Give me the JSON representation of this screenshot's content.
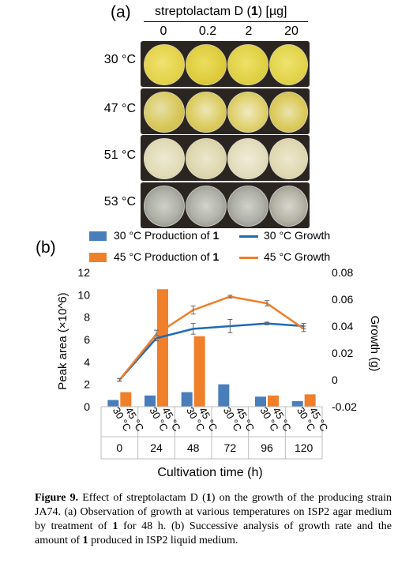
{
  "panel_a": {
    "letter": "(a)",
    "header_prefix": "streptolactam D (",
    "header_compound": "1",
    "header_suffix": ") [µg]",
    "doses": [
      "0",
      "0.2",
      "2",
      "20"
    ],
    "temperatures": [
      "30 °C",
      "47 °C",
      "51 °C",
      "53 °C"
    ]
  },
  "panel_b": {
    "letter": "(b)",
    "legend": [
      {
        "label": "30 °C Production of ",
        "bold": "1",
        "kind": "bar",
        "color": "#4a7ebb"
      },
      {
        "label": "30 °C Growth",
        "bold": "",
        "kind": "line",
        "color": "#1f6ab5"
      },
      {
        "label": "45 °C Production of ",
        "bold": "1",
        "kind": "bar",
        "color": "#f07f2a"
      },
      {
        "label": "45 °C Growth",
        "bold": "",
        "kind": "line",
        "color": "#f07f2a"
      }
    ]
  },
  "chart_data": {
    "type": "bar",
    "categories": [
      "0",
      "24",
      "48",
      "72",
      "96",
      "120"
    ],
    "subcategories": [
      "30 °C",
      "45 °C"
    ],
    "xlabel": "Cultivation time (h)",
    "ylabel": "Peak area (×10^6)",
    "y2label": "Growth (g)",
    "ylim": [
      0,
      12
    ],
    "yticks": [
      "0",
      "2",
      "4",
      "6",
      "8",
      "10",
      "12"
    ],
    "y2lim": [
      -0.02,
      0.08
    ],
    "y2ticks": [
      "-0.02",
      "0",
      "0.02",
      "0.04",
      "0.06",
      "0.08"
    ],
    "series": [
      {
        "name": "30 °C Production of 1",
        "type": "bar",
        "axis": "left",
        "color": "#4a7ebb",
        "values": [
          0.6,
          1.0,
          1.3,
          2.0,
          0.9,
          0.5
        ]
      },
      {
        "name": "45 °C Production of 1",
        "type": "bar",
        "axis": "left",
        "color": "#f07f2a",
        "values": [
          1.3,
          10.5,
          6.3,
          0.0,
          1.0,
          1.1
        ]
      },
      {
        "name": "30 °C Growth",
        "type": "line",
        "axis": "right",
        "color": "#1f6ab5",
        "values": [
          0.0,
          0.031,
          0.038,
          0.04,
          0.042,
          0.04
        ],
        "errors": [
          0.001,
          0.002,
          0.004,
          0.005,
          0.001,
          0.002
        ]
      },
      {
        "name": "45 °C Growth",
        "type": "line",
        "axis": "right",
        "color": "#f07f2a",
        "values": [
          0.0,
          0.034,
          0.052,
          0.062,
          0.057,
          0.038
        ],
        "errors": [
          0.001,
          0.003,
          0.003,
          0.001,
          0.002,
          0.002
        ]
      }
    ]
  },
  "caption": {
    "label": "Figure 9.",
    "p1": " Effect of streptolactam D (",
    "b1": "1",
    "p2": ") on the growth of the producing strain JA74. (a) Observation of growth at various temperatures on ISP2 agar medium by treatment of ",
    "b2": "1",
    "p3": " for 48 h. (b) Successive analysis of growth rate and the amount of ",
    "b3": "1",
    "p4": " produced in ISP2 liquid medium."
  }
}
